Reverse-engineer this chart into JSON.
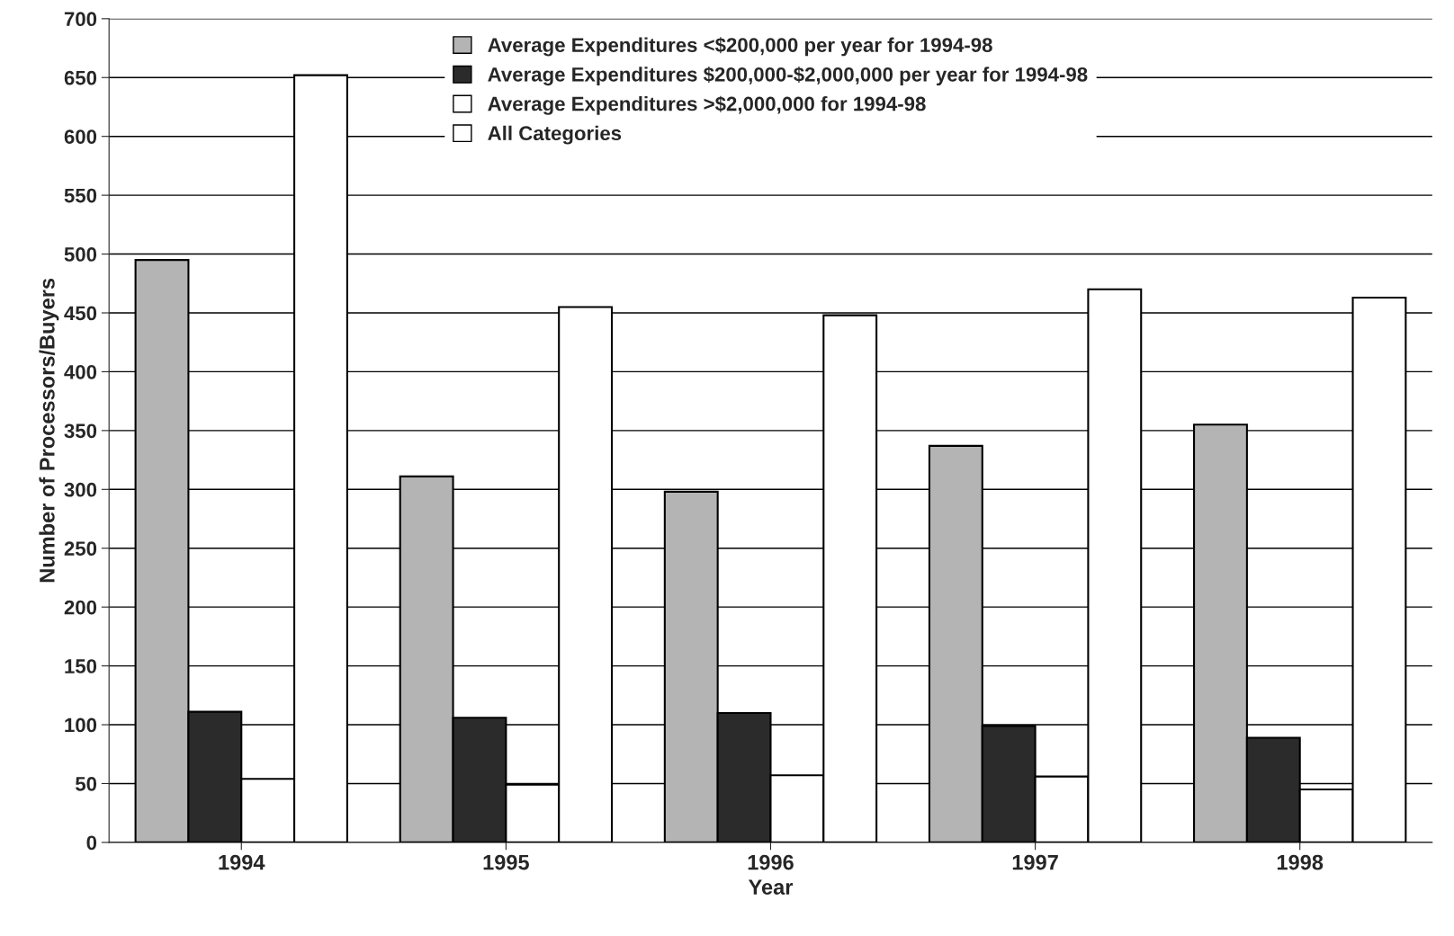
{
  "chart_data": {
    "type": "bar",
    "xlabel": "Year",
    "ylabel": "Number of Processors/Buyers",
    "categories": [
      "1994",
      "1995",
      "1996",
      "1997",
      "1998"
    ],
    "series": [
      {
        "name": "Average Expenditures <$200,000 per year for 1994-98",
        "color": "#b4b4b4",
        "values": [
          495,
          311,
          298,
          337,
          355
        ]
      },
      {
        "name": "Average Expenditures $200,000-$2,000,000 per year for 1994-98",
        "color": "#2b2b2b",
        "values": [
          111,
          106,
          110,
          99,
          89
        ]
      },
      {
        "name": "Average Expenditures >$2,000,000 for 1994-98",
        "color": "#ffffff",
        "values": [
          54,
          49,
          57,
          56,
          45
        ]
      },
      {
        "name": "All Categories",
        "color": "#ffffff",
        "values": [
          652,
          455,
          448,
          470,
          463
        ]
      }
    ],
    "ylim": [
      0,
      700
    ],
    "yticks": [
      0,
      50,
      100,
      150,
      200,
      250,
      300,
      350,
      400,
      450,
      500,
      550,
      600,
      650,
      700
    ],
    "grid": "y",
    "legend": "top"
  }
}
